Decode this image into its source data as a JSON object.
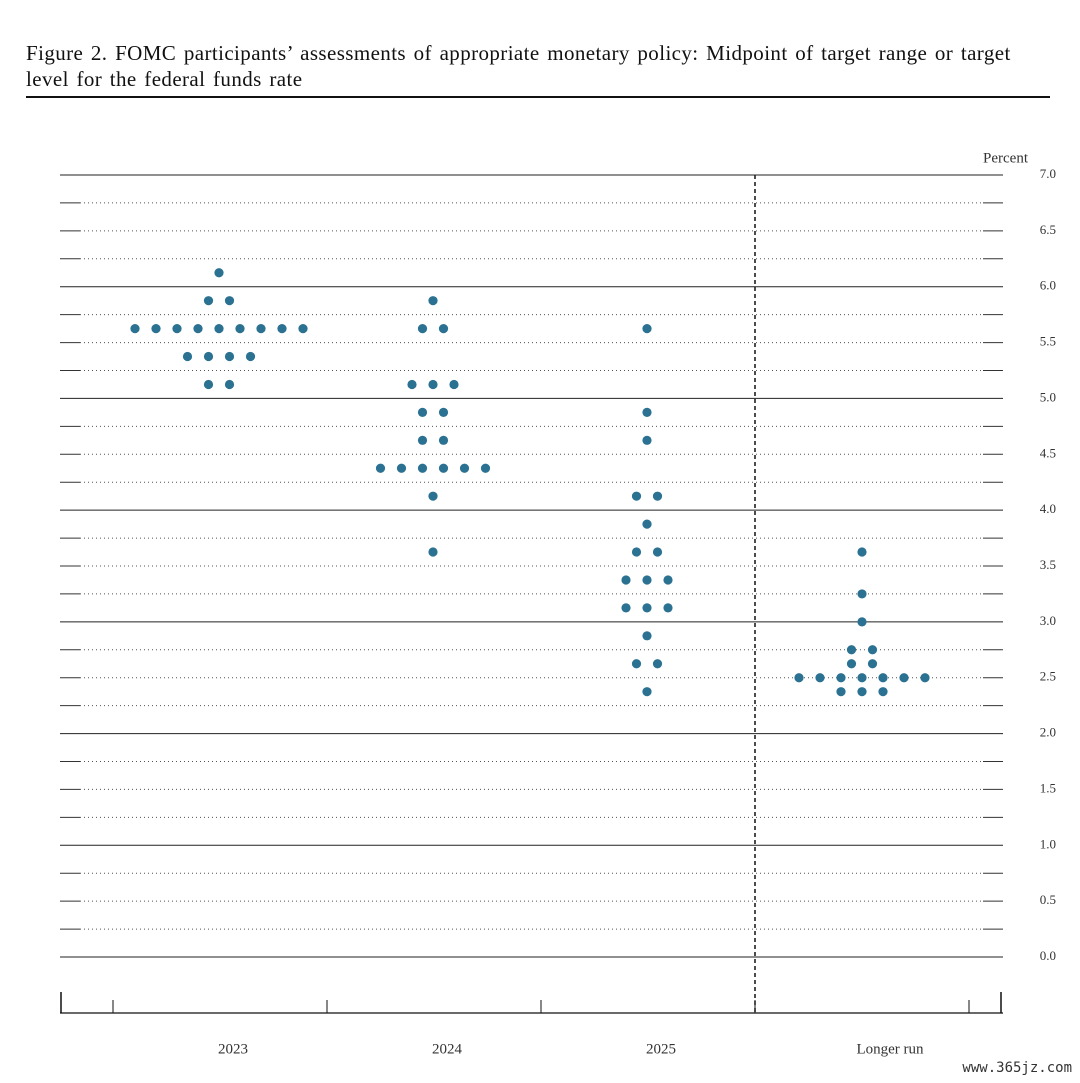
{
  "chart_data": {
    "type": "dot",
    "title": "Figure 2.  FOMC participants’ assessments of appropriate monetary policy: Midpoint of target range or target level for the federal funds rate",
    "y_label": "Percent",
    "watermark": "www.365jz.com",
    "categories": [
      "2023",
      "2024",
      "2025",
      "Longer run"
    ],
    "color": "#2b7191",
    "values": [
      [
        6.125,
        5.875,
        5.875,
        5.625,
        5.625,
        5.625,
        5.625,
        5.625,
        5.625,
        5.625,
        5.625,
        5.625,
        5.375,
        5.375,
        5.375,
        5.375,
        5.125,
        5.125
      ],
      [
        5.875,
        5.625,
        5.625,
        5.125,
        5.125,
        5.125,
        4.875,
        4.875,
        4.625,
        4.625,
        4.375,
        4.375,
        4.375,
        4.375,
        4.375,
        4.375,
        4.125,
        3.625
      ],
      [
        5.625,
        4.875,
        4.625,
        4.125,
        4.125,
        3.875,
        3.625,
        3.625,
        3.375,
        3.375,
        3.375,
        3.125,
        3.125,
        3.125,
        2.875,
        2.625,
        2.625,
        2.375
      ],
      [
        3.625,
        3.25,
        3.0,
        2.75,
        2.75,
        2.625,
        2.625,
        2.5,
        2.5,
        2.5,
        2.5,
        2.5,
        2.5,
        2.5,
        2.375,
        2.375,
        2.375
      ]
    ],
    "ylim": [
      0,
      7
    ],
    "yticks": [
      {
        "value": 0,
        "label": "0.0"
      },
      0.5,
      {
        "value": 1,
        "label": "1.0"
      },
      1.5,
      {
        "value": 2,
        "label": "2.0"
      },
      2.5,
      {
        "value": 3,
        "label": "3.0"
      },
      3.5,
      {
        "value": 4,
        "label": "4.0"
      },
      4.5,
      {
        "value": 5,
        "label": "5.0"
      },
      5.5,
      {
        "value": 6,
        "label": "6.0"
      },
      6.5,
      {
        "value": 7,
        "label": "7.0"
      }
    ],
    "minor_yticks": [
      0.25,
      0.75,
      1.25,
      1.75,
      2.25,
      2.75,
      3.25,
      3.75,
      4.25,
      4.75,
      5.25,
      5.75,
      6.25,
      6.75
    ],
    "grid": true
  }
}
